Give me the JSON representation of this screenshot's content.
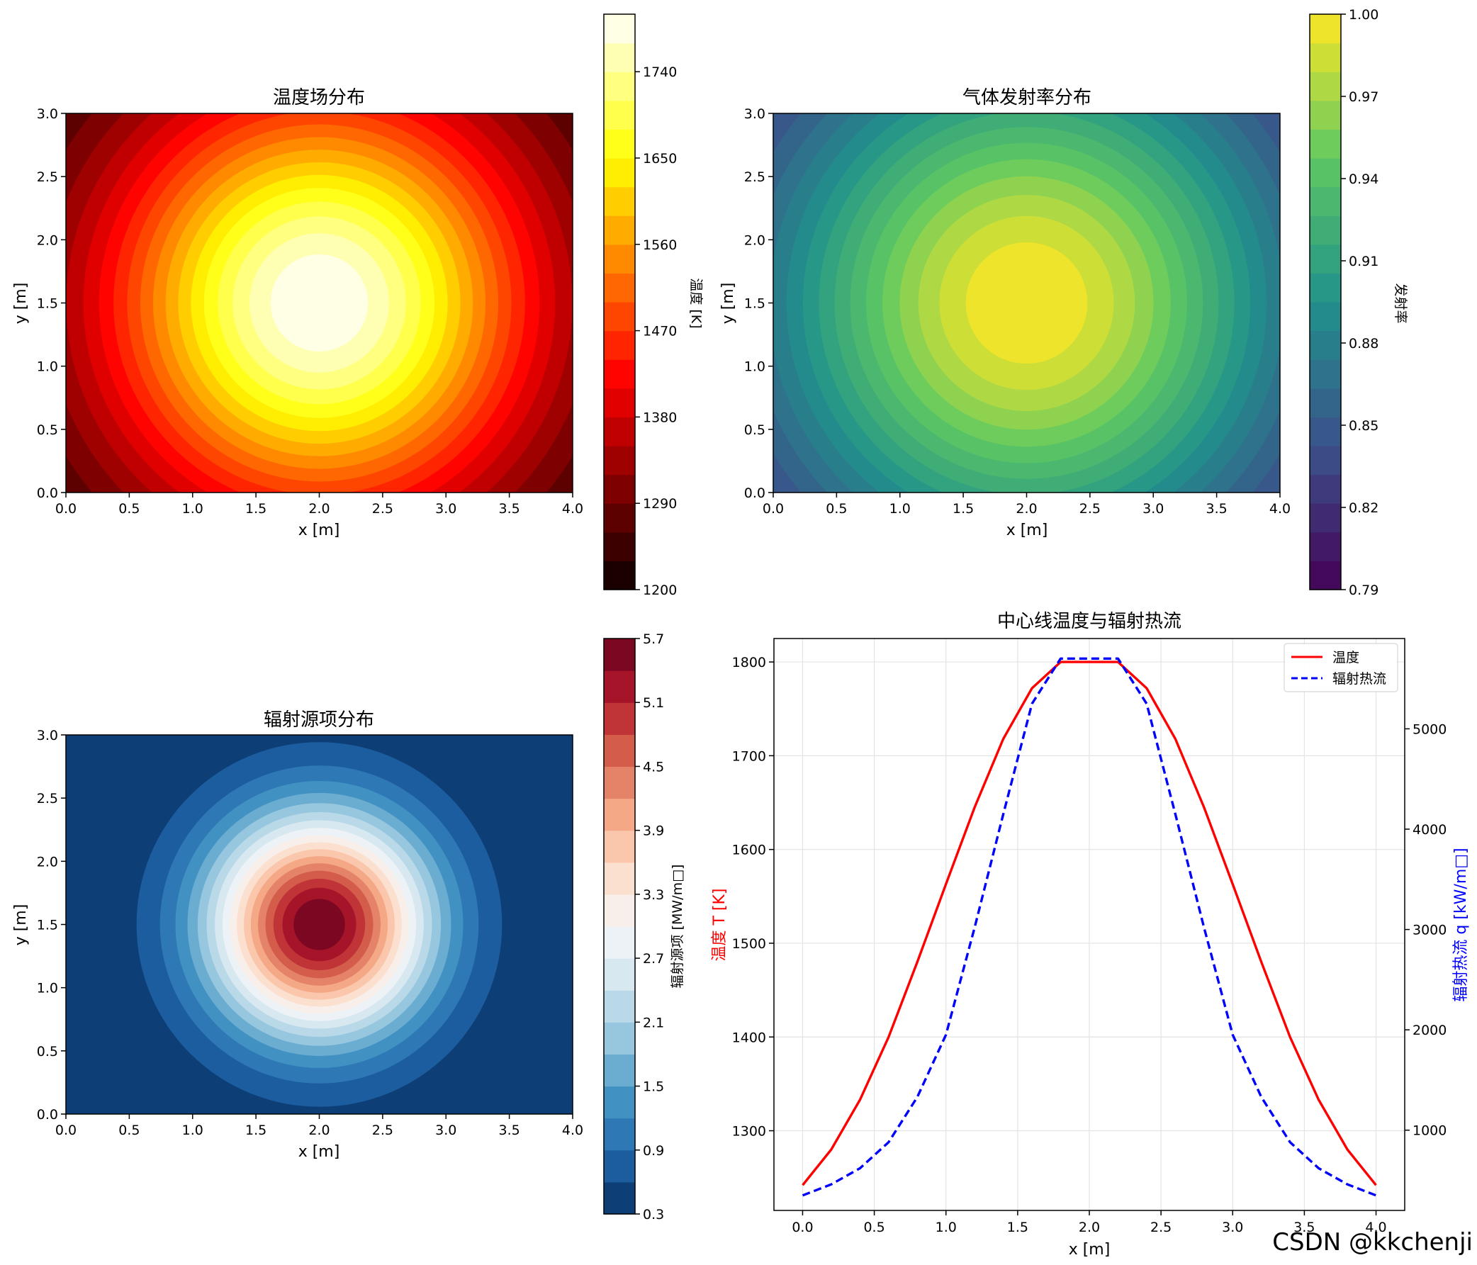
{
  "watermark": "CSDN @kkchenji",
  "chart_data": [
    {
      "type": "heatmap",
      "id": "temperature",
      "title": "温度场分布",
      "xlabel": "x [m]",
      "ylabel": "y [m]",
      "xlim": [
        0,
        4
      ],
      "ylim": [
        0,
        3
      ],
      "xticks": [
        "0.0",
        "0.5",
        "1.0",
        "1.5",
        "2.0",
        "2.5",
        "3.0",
        "3.5",
        "4.0"
      ],
      "yticks": [
        "0.0",
        "0.5",
        "1.0",
        "1.5",
        "2.0",
        "2.5",
        "3.0"
      ],
      "center": [
        2.0,
        1.5
      ],
      "field": "gaussian",
      "min": 1200,
      "max": 1800,
      "sigma": 1.2,
      "levels": 20,
      "colormap": "hot",
      "colorbar": {
        "label": "温度 [K]",
        "range": [
          1200,
          1800
        ],
        "ticks": [
          "1200",
          "1290",
          "1380",
          "1470",
          "1560",
          "1650",
          "1740"
        ],
        "tick_values": [
          1200,
          1290,
          1380,
          1470,
          1560,
          1650,
          1740
        ]
      }
    },
    {
      "type": "heatmap",
      "id": "emissivity",
      "title": "气体发射率分布",
      "xlabel": "x [m]",
      "ylabel": "y [m]",
      "xlim": [
        0,
        4
      ],
      "ylim": [
        0,
        3
      ],
      "xticks": [
        "0.0",
        "0.5",
        "1.0",
        "1.5",
        "2.0",
        "2.5",
        "3.0",
        "3.5",
        "4.0"
      ],
      "yticks": [
        "0.0",
        "0.5",
        "1.0",
        "1.5",
        "2.0",
        "2.5",
        "3.0"
      ],
      "center": [
        2.0,
        1.5
      ],
      "field": "gaussian",
      "min": 0.79,
      "max": 1.0,
      "sigma": 1.5,
      "levels": 20,
      "colormap": "viridis",
      "colorbar": {
        "label": "发射率",
        "range": [
          0.79,
          1.0
        ],
        "ticks": [
          "0.79",
          "0.82",
          "0.85",
          "0.88",
          "0.91",
          "0.94",
          "0.97",
          "1.00"
        ],
        "tick_values": [
          0.79,
          0.82,
          0.85,
          0.88,
          0.91,
          0.94,
          0.97,
          1.0
        ]
      }
    },
    {
      "type": "heatmap",
      "id": "source",
      "title": "辐射源项分布",
      "xlabel": "x [m]",
      "ylabel": "y [m]",
      "xlim": [
        0,
        4
      ],
      "ylim": [
        0,
        3
      ],
      "xticks": [
        "0.0",
        "0.5",
        "1.0",
        "1.5",
        "2.0",
        "2.5",
        "3.0",
        "3.5",
        "4.0"
      ],
      "yticks": [
        "0.0",
        "0.5",
        "1.0",
        "1.5",
        "2.0",
        "2.5",
        "3.0"
      ],
      "center": [
        2.0,
        1.5
      ],
      "field": "power4",
      "min": 0.3,
      "max": 5.7,
      "sigma": 1.2,
      "levels": 18,
      "colormap": "RdBu_r",
      "colorbar": {
        "label": "辐射源项 [MW/m□]",
        "range": [
          0.3,
          5.7
        ],
        "ticks": [
          "0.3",
          "0.9",
          "1.5",
          "2.1",
          "2.7",
          "3.3",
          "3.9",
          "4.5",
          "5.1",
          "5.7"
        ],
        "tick_values": [
          0.3,
          0.9,
          1.5,
          2.1,
          2.7,
          3.3,
          3.9,
          4.5,
          5.1,
          5.7
        ]
      }
    },
    {
      "type": "line",
      "id": "centerline",
      "title": "中心线温度与辐射热流",
      "xlabel": "x [m]",
      "ylabel_left": "温度 T [K]",
      "ylabel_right": "辐射热流 q [kW/m□]",
      "xlim": [
        -0.2,
        4.2
      ],
      "ylim_left": [
        1215,
        1825
      ],
      "ylim_right": [
        200,
        5900
      ],
      "xticks": [
        "0.0",
        "0.5",
        "1.0",
        "1.5",
        "2.0",
        "2.5",
        "3.0",
        "3.5",
        "4.0"
      ],
      "xtick_values": [
        0,
        0.5,
        1,
        1.5,
        2,
        2.5,
        3,
        3.5,
        4
      ],
      "yticks_left": [
        "1300",
        "1400",
        "1500",
        "1600",
        "1700",
        "1800"
      ],
      "ytick_values_left": [
        1300,
        1400,
        1500,
        1600,
        1700,
        1800
      ],
      "yticks_right": [
        "1000",
        "2000",
        "3000",
        "4000",
        "5000"
      ],
      "ytick_values_right": [
        1000,
        2000,
        3000,
        4000,
        5000
      ],
      "grid": true,
      "legend_position": "top-right",
      "x": [
        0.0,
        0.2,
        0.4,
        0.6,
        0.8,
        1.0,
        1.2,
        1.4,
        1.6,
        1.8,
        2.0,
        2.2,
        2.4,
        2.6,
        2.8,
        3.0,
        3.2,
        3.4,
        3.6,
        3.8,
        4.0
      ],
      "series": [
        {
          "name": "温度",
          "axis": "left",
          "color": "#ff0000",
          "style": "solid",
          "values": [
            1242,
            1280,
            1333,
            1400,
            1480,
            1563,
            1645,
            1718,
            1772,
            1800,
            1800,
            1800,
            1772,
            1718,
            1645,
            1563,
            1480,
            1400,
            1333,
            1280,
            1242
          ]
        },
        {
          "name": "辐射热流",
          "axis": "right",
          "color": "#0000ff",
          "style": "dashed",
          "values": [
            350,
            460,
            620,
            880,
            1330,
            1950,
            3020,
            4150,
            5250,
            5700,
            5700,
            5700,
            5250,
            4150,
            3020,
            1950,
            1330,
            880,
            620,
            460,
            350
          ]
        }
      ]
    }
  ]
}
